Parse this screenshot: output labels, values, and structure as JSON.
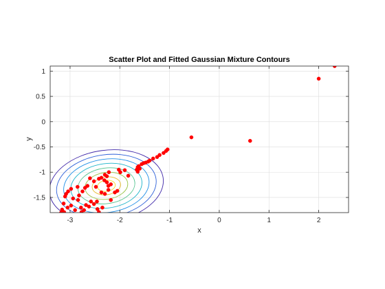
{
  "chart_data": {
    "type": "scatter",
    "title": "Scatter Plot and Fitted Gaussian Mixture Contours",
    "xlabel": "x",
    "ylabel": "y",
    "xlim": [
      -3.4,
      2.6
    ],
    "ylim": [
      -1.8,
      1.1
    ],
    "xticks": [
      -3,
      -2,
      -1,
      0,
      1,
      2
    ],
    "yticks": [
      1,
      0.5,
      0,
      -0.5,
      -1,
      -1.5
    ],
    "xtick_labels": [
      "-3",
      "-2",
      "-1",
      "0",
      "1",
      "2"
    ],
    "ytick_labels": [
      "1",
      "0.5",
      "0",
      "-0.5",
      "-1",
      "-1.5"
    ],
    "grid": true,
    "box": true,
    "marker_color": "#ff0000",
    "points": [
      [
        2.32,
        1.1
      ],
      [
        2.0,
        0.85
      ],
      [
        -0.56,
        -0.31
      ],
      [
        0.62,
        -0.38
      ],
      [
        -1.04,
        -0.55
      ],
      [
        -1.07,
        -0.58
      ],
      [
        -1.12,
        -0.62
      ],
      [
        -1.2,
        -0.66
      ],
      [
        -1.25,
        -0.7
      ],
      [
        -1.33,
        -0.73
      ],
      [
        -1.4,
        -0.77
      ],
      [
        -1.43,
        -0.79
      ],
      [
        -1.48,
        -0.81
      ],
      [
        -1.52,
        -0.82
      ],
      [
        -1.56,
        -0.84
      ],
      [
        -1.62,
        -0.88
      ],
      [
        -1.64,
        -0.9
      ],
      [
        -1.6,
        -0.93
      ],
      [
        -1.66,
        -0.95
      ],
      [
        -1.64,
        -0.99
      ],
      [
        -1.9,
        -0.96
      ],
      [
        -2.02,
        -0.95
      ],
      [
        -1.99,
        -1.0
      ],
      [
        -1.83,
        -1.07
      ],
      [
        -2.22,
        -1.0
      ],
      [
        -2.3,
        -1.05
      ],
      [
        -2.26,
        -1.08
      ],
      [
        -2.37,
        -1.11
      ],
      [
        -2.42,
        -1.13
      ],
      [
        -2.6,
        -1.12
      ],
      [
        -2.31,
        -1.16
      ],
      [
        -2.26,
        -1.2
      ],
      [
        -2.52,
        -1.18
      ],
      [
        -2.18,
        -1.24
      ],
      [
        -2.23,
        -1.27
      ],
      [
        -2.65,
        -1.27
      ],
      [
        -2.48,
        -1.29
      ],
      [
        -2.85,
        -1.29
      ],
      [
        -2.7,
        -1.31
      ],
      [
        -2.98,
        -1.33
      ],
      [
        -2.23,
        -1.35
      ],
      [
        -2.75,
        -1.38
      ],
      [
        -2.05,
        -1.37
      ],
      [
        -3.04,
        -1.38
      ],
      [
        -2.37,
        -1.4
      ],
      [
        -2.1,
        -1.4
      ],
      [
        -2.3,
        -1.43
      ],
      [
        -3.08,
        -1.43
      ],
      [
        -2.82,
        -1.46
      ],
      [
        -3.1,
        -1.48
      ],
      [
        -2.18,
        -1.55
      ],
      [
        -2.94,
        -1.52
      ],
      [
        -2.84,
        -1.55
      ],
      [
        -2.58,
        -1.58
      ],
      [
        -3.13,
        -1.62
      ],
      [
        -2.46,
        -1.58
      ],
      [
        -2.52,
        -1.63
      ],
      [
        -2.68,
        -1.65
      ],
      [
        -2.98,
        -1.66
      ],
      [
        -2.35,
        -1.7
      ],
      [
        -2.62,
        -1.68
      ],
      [
        -2.78,
        -1.7
      ],
      [
        -3.05,
        -1.7
      ],
      [
        -2.45,
        -1.73
      ],
      [
        -3.16,
        -1.74
      ],
      [
        -2.72,
        -1.75
      ],
      [
        -2.9,
        -1.75
      ],
      [
        -3.12,
        -1.79
      ],
      [
        -2.42,
        -1.79
      ],
      [
        -2.77,
        -1.79
      ],
      [
        -3.18,
        -1.8
      ]
    ],
    "contours": {
      "center": [
        -2.27,
        -1.27
      ],
      "sigma": [
        0.36,
        0.22
      ],
      "rotation_deg": -8,
      "levels": [
        3.2,
        2.8,
        2.4,
        2.0,
        1.6,
        1.2,
        0.8,
        0.5
      ],
      "colors": [
        "#3e26a8",
        "#2c5fd8",
        "#1d8ee6",
        "#1ab3c9",
        "#4cc18b",
        "#98c447",
        "#e6bc2e",
        "#f5d91e"
      ]
    }
  }
}
